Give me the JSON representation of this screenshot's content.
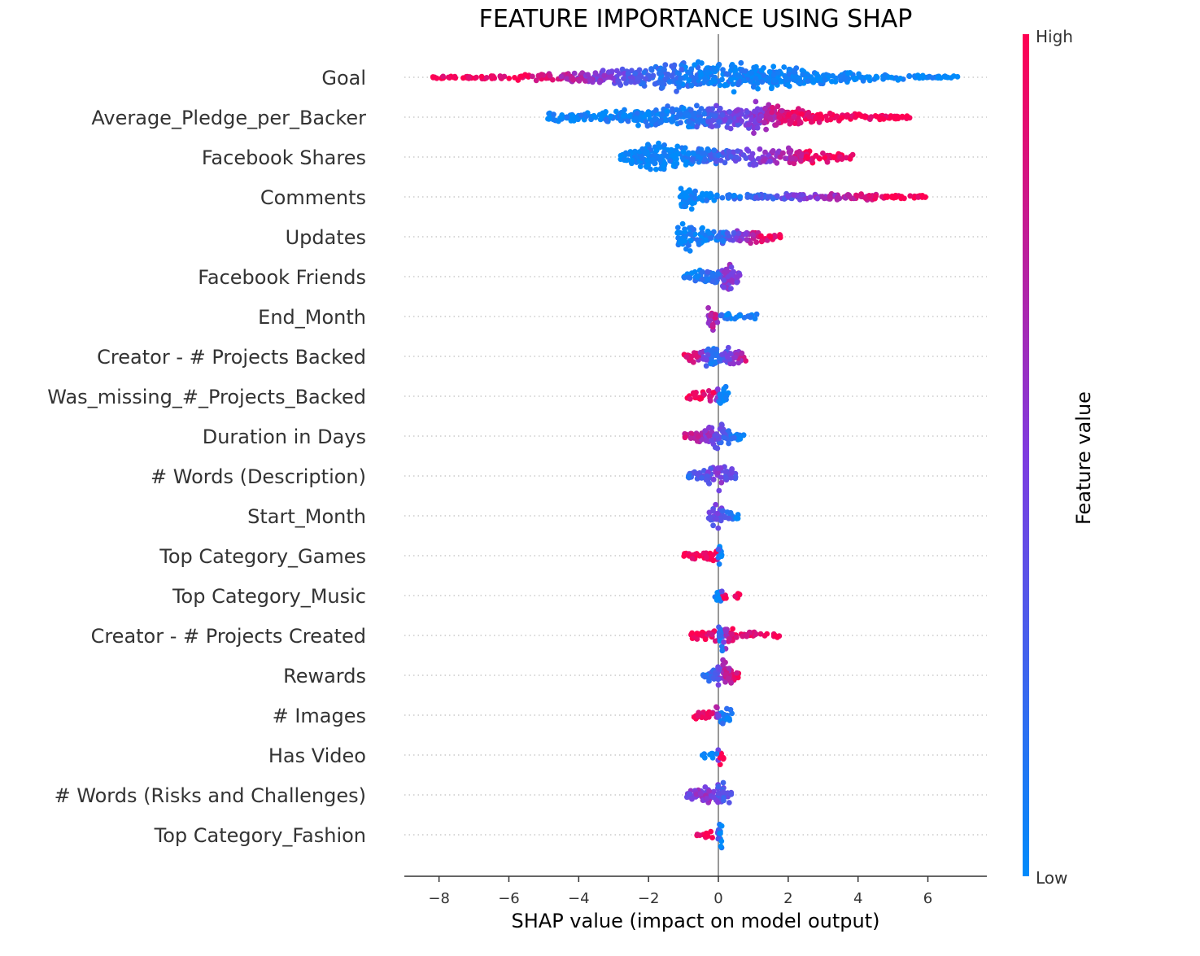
{
  "chart_data": {
    "type": "scatter",
    "subtype": "shap-beeswarm",
    "title": "FEATURE IMPORTANCE USING SHAP",
    "xlabel": "SHAP value (impact on model output)",
    "xlim": [
      -9,
      7.7
    ],
    "xticks": [
      -8,
      -6,
      -4,
      -2,
      0,
      2,
      4,
      6
    ],
    "xtick_labels": [
      "−8",
      "−6",
      "−4",
      "−2",
      "0",
      "2",
      "4",
      "6"
    ],
    "colorbar": {
      "label": "Feature value",
      "high_label": "High",
      "low_label": "Low",
      "high_color": "#ff0052",
      "low_color": "#008bfb"
    },
    "features": [
      {
        "name": "Goal",
        "min": -8.3,
        "max": 6.9,
        "profile": [
          [
            -8.3,
            0.04
          ],
          [
            -6.5,
            0.12
          ],
          [
            -5,
            0.25
          ],
          [
            -3.5,
            0.45
          ],
          [
            -2,
            0.7
          ],
          [
            -1,
            0.9
          ],
          [
            0,
            1
          ],
          [
            1,
            0.85
          ],
          [
            2.5,
            0.55
          ],
          [
            4,
            0.3
          ],
          [
            6,
            0.12
          ],
          [
            6.9,
            0.04
          ]
        ],
        "color_trend": [
          [
            -8.3,
            1
          ],
          [
            -5.5,
            0.95
          ],
          [
            -4,
            0.65
          ],
          [
            -3,
            0.45
          ],
          [
            -2,
            0.2
          ],
          [
            0,
            0.05
          ],
          [
            6.9,
            0
          ]
        ]
      },
      {
        "name": "Average_Pledge_per_Backer",
        "min": -4.9,
        "max": 5.5,
        "profile": [
          [
            -4.9,
            0.3
          ],
          [
            -4.2,
            0.3
          ],
          [
            -3,
            0.45
          ],
          [
            -2,
            0.65
          ],
          [
            -1,
            0.75
          ],
          [
            0,
            0.8
          ],
          [
            1,
            1
          ],
          [
            2,
            0.6
          ],
          [
            3,
            0.35
          ],
          [
            4.5,
            0.18
          ],
          [
            5.5,
            0.1
          ]
        ],
        "color_trend": [
          [
            -4.9,
            0
          ],
          [
            -1,
            0.08
          ],
          [
            0,
            0.35
          ],
          [
            1,
            0.5
          ],
          [
            1.7,
            0.8
          ],
          [
            2.5,
            0.95
          ],
          [
            5.5,
            1
          ]
        ]
      },
      {
        "name": "Facebook Shares",
        "min": -2.8,
        "max": 4.0,
        "profile": [
          [
            -2.8,
            0.3
          ],
          [
            -2.3,
            0.7
          ],
          [
            -1.8,
            1
          ],
          [
            -1,
            0.65
          ],
          [
            0,
            0.5
          ],
          [
            1,
            0.55
          ],
          [
            2,
            0.6
          ],
          [
            3,
            0.4
          ],
          [
            4,
            0.1
          ]
        ],
        "color_trend": [
          [
            -2.8,
            0
          ],
          [
            -1,
            0.05
          ],
          [
            0,
            0.25
          ],
          [
            1,
            0.5
          ],
          [
            2,
            0.65
          ],
          [
            2.5,
            0.9
          ],
          [
            4,
            1
          ]
        ]
      },
      {
        "name": "Comments",
        "min": -1.1,
        "max": 6.0,
        "profile": [
          [
            -1.1,
            0.5
          ],
          [
            -0.9,
            1
          ],
          [
            -0.6,
            0.5
          ],
          [
            0,
            0.25
          ],
          [
            1,
            0.18
          ],
          [
            2,
            0.2
          ],
          [
            3,
            0.2
          ],
          [
            4,
            0.22
          ],
          [
            5,
            0.2
          ],
          [
            6,
            0.08
          ]
        ],
        "color_trend": [
          [
            -1.1,
            0
          ],
          [
            0,
            0.05
          ],
          [
            1.5,
            0.3
          ],
          [
            3,
            0.6
          ],
          [
            4,
            0.8
          ],
          [
            5,
            1
          ],
          [
            6,
            1
          ]
        ]
      },
      {
        "name": "Updates",
        "min": -1.2,
        "max": 1.8,
        "profile": [
          [
            -1.2,
            0.6
          ],
          [
            -0.8,
            1
          ],
          [
            -0.4,
            0.6
          ],
          [
            0,
            0.4
          ],
          [
            0.5,
            0.45
          ],
          [
            1,
            0.5
          ],
          [
            1.8,
            0.15
          ]
        ],
        "color_trend": [
          [
            -1.2,
            0
          ],
          [
            0,
            0.1
          ],
          [
            0.6,
            0.5
          ],
          [
            1,
            0.8
          ],
          [
            1.8,
            1
          ]
        ]
      },
      {
        "name": "Facebook Friends",
        "min": -1.0,
        "max": 0.7,
        "profile": [
          [
            -1,
            0.2
          ],
          [
            -0.5,
            0.5
          ],
          [
            0,
            0.7
          ],
          [
            0.2,
            1
          ],
          [
            0.5,
            0.6
          ],
          [
            0.7,
            0.2
          ]
        ],
        "color_trend": [
          [
            -1,
            0
          ],
          [
            0,
            0.25
          ],
          [
            0.2,
            0.55
          ],
          [
            0.7,
            0.5
          ]
        ]
      },
      {
        "name": "End_Month",
        "min": -0.4,
        "max": 1.1,
        "profile": [
          [
            -0.4,
            0.3
          ],
          [
            -0.15,
            1
          ],
          [
            0.1,
            0.2
          ],
          [
            0.5,
            0.2
          ],
          [
            1.1,
            0.2
          ]
        ],
        "color_trend": [
          [
            -0.4,
            0.55
          ],
          [
            -0.1,
            0.75
          ],
          [
            0.1,
            0.1
          ],
          [
            1.1,
            0
          ]
        ]
      },
      {
        "name": "Creator - # Projects Backed",
        "min": -1.0,
        "max": 0.9,
        "profile": [
          [
            -1,
            0.35
          ],
          [
            -0.5,
            0.45
          ],
          [
            0,
            0.9
          ],
          [
            0.3,
            0.6
          ],
          [
            0.9,
            0.3
          ]
        ],
        "color_trend": [
          [
            -1,
            1
          ],
          [
            -0.6,
            0.8
          ],
          [
            -0.2,
            0.1
          ],
          [
            0.3,
            0.45
          ],
          [
            0.9,
            0.9
          ]
        ]
      },
      {
        "name": "Was_missing_#_Projects_Backed",
        "min": -0.9,
        "max": 0.3,
        "profile": [
          [
            -0.9,
            0.3
          ],
          [
            -0.5,
            0.35
          ],
          [
            -0.1,
            0.4
          ],
          [
            0.1,
            1
          ],
          [
            0.3,
            0.4
          ]
        ],
        "color_trend": [
          [
            -0.9,
            1
          ],
          [
            -0.1,
            0.9
          ],
          [
            0.05,
            0
          ],
          [
            0.3,
            0
          ]
        ]
      },
      {
        "name": "Duration in Days",
        "min": -1.0,
        "max": 0.8,
        "profile": [
          [
            -1,
            0.2
          ],
          [
            -0.3,
            0.6
          ],
          [
            0,
            1
          ],
          [
            0.3,
            0.5
          ],
          [
            0.8,
            0.2
          ]
        ],
        "color_trend": [
          [
            -1,
            0.8
          ],
          [
            -0.2,
            0.55
          ],
          [
            0.1,
            0.3
          ],
          [
            0.8,
            0
          ]
        ]
      },
      {
        "name": "# Words (Description)",
        "min": -0.9,
        "max": 0.5,
        "profile": [
          [
            -0.9,
            0.2
          ],
          [
            -0.3,
            0.5
          ],
          [
            0.1,
            1
          ],
          [
            0.5,
            0.4
          ]
        ],
        "color_trend": [
          [
            -0.9,
            0.2
          ],
          [
            0,
            0.5
          ],
          [
            0.5,
            0.3
          ]
        ]
      },
      {
        "name": "Start_Month",
        "min": -0.3,
        "max": 0.6,
        "profile": [
          [
            -0.3,
            0.4
          ],
          [
            -0.1,
            1
          ],
          [
            0.2,
            0.4
          ],
          [
            0.6,
            0.2
          ]
        ],
        "color_trend": [
          [
            -0.3,
            0.35
          ],
          [
            0,
            0.45
          ],
          [
            0.6,
            0
          ]
        ]
      },
      {
        "name": "Top Category_Games",
        "min": -1.0,
        "max": 0.1,
        "profile": [
          [
            -1,
            0.3
          ],
          [
            -0.5,
            0.3
          ],
          [
            -0.05,
            0.35
          ],
          [
            0.05,
            0.9
          ]
        ],
        "color_trend": [
          [
            -1,
            1
          ],
          [
            -0.05,
            1
          ],
          [
            0.02,
            0
          ],
          [
            0.1,
            0
          ]
        ]
      },
      {
        "name": "Top Category_Music",
        "min": -0.1,
        "max": 0.7,
        "profile": [
          [
            -0.1,
            1
          ],
          [
            0.05,
            0.6
          ],
          [
            0.2,
            0.3
          ],
          [
            0.7,
            0.3
          ]
        ],
        "color_trend": [
          [
            -0.1,
            0
          ],
          [
            0.05,
            0
          ],
          [
            0.15,
            1
          ],
          [
            0.7,
            1
          ]
        ]
      },
      {
        "name": "Creator - # Projects Created",
        "min": -0.8,
        "max": 1.8,
        "profile": [
          [
            -0.8,
            0.25
          ],
          [
            -0.1,
            0.5
          ],
          [
            0.1,
            1
          ],
          [
            0.5,
            0.3
          ],
          [
            1.8,
            0.2
          ]
        ],
        "color_trend": [
          [
            -0.8,
            1
          ],
          [
            -0.1,
            0.9
          ],
          [
            0.05,
            0
          ],
          [
            0.3,
            0.9
          ],
          [
            1.8,
            1
          ]
        ]
      },
      {
        "name": "Rewards",
        "min": -0.5,
        "max": 0.6,
        "profile": [
          [
            -0.5,
            0.3
          ],
          [
            -0.1,
            0.6
          ],
          [
            0.1,
            1
          ],
          [
            0.6,
            0.3
          ]
        ],
        "color_trend": [
          [
            -0.5,
            0.05
          ],
          [
            0,
            0.35
          ],
          [
            0.2,
            0.7
          ],
          [
            0.6,
            0.95
          ]
        ]
      },
      {
        "name": "# Images",
        "min": -0.7,
        "max": 0.4,
        "profile": [
          [
            -0.7,
            0.3
          ],
          [
            -0.1,
            0.35
          ],
          [
            0.05,
            0.9
          ],
          [
            0.4,
            0.3
          ]
        ],
        "color_trend": [
          [
            -0.7,
            1
          ],
          [
            -0.1,
            0.85
          ],
          [
            0.05,
            0.15
          ],
          [
            0.4,
            0
          ]
        ]
      },
      {
        "name": "Has Video",
        "min": -0.5,
        "max": 0.15,
        "profile": [
          [
            -0.5,
            0.2
          ],
          [
            -0.05,
            0.3
          ],
          [
            0.05,
            1
          ],
          [
            0.15,
            0.9
          ]
        ],
        "color_trend": [
          [
            -0.5,
            0
          ],
          [
            -0.05,
            0
          ],
          [
            0.05,
            1
          ],
          [
            0.15,
            1
          ]
        ]
      },
      {
        "name": "# Words (Risks and Challenges)",
        "min": -0.9,
        "max": 0.4,
        "profile": [
          [
            -0.9,
            0.3
          ],
          [
            -0.3,
            0.5
          ],
          [
            0,
            1
          ],
          [
            0.4,
            0.4
          ]
        ],
        "color_trend": [
          [
            -0.9,
            0.5
          ],
          [
            -0.2,
            0.55
          ],
          [
            0.1,
            0.3
          ],
          [
            0.4,
            0.4
          ]
        ]
      },
      {
        "name": "Top Category_Fashion",
        "min": -0.7,
        "max": 0.1,
        "profile": [
          [
            -0.7,
            0.3
          ],
          [
            -0.05,
            0.35
          ],
          [
            0.05,
            1
          ],
          [
            0.1,
            0.9
          ]
        ],
        "color_trend": [
          [
            -0.7,
            1
          ],
          [
            -0.05,
            1
          ],
          [
            0.02,
            0
          ],
          [
            0.1,
            0
          ]
        ]
      }
    ]
  }
}
